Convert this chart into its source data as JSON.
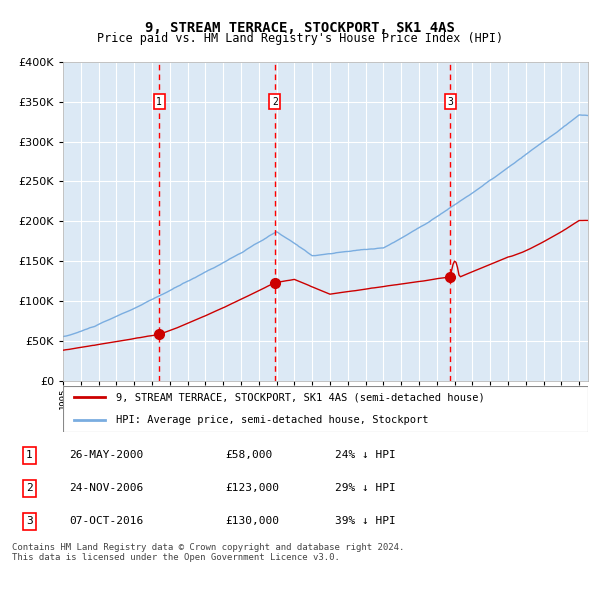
{
  "title": "9, STREAM TERRACE, STOCKPORT, SK1 4AS",
  "subtitle": "Price paid vs. HM Land Registry's House Price Index (HPI)",
  "legend_line1": "9, STREAM TERRACE, STOCKPORT, SK1 4AS (semi-detached house)",
  "legend_line2": "HPI: Average price, semi-detached house, Stockport",
  "footer": "Contains HM Land Registry data © Crown copyright and database right 2024.\nThis data is licensed under the Open Government Licence v3.0.",
  "sale_markers": [
    {
      "label": "1",
      "date": "26-MAY-2000",
      "price": 58000,
      "note": "24% ↓ HPI"
    },
    {
      "label": "2",
      "date": "24-NOV-2006",
      "price": 123000,
      "note": "29% ↓ HPI"
    },
    {
      "label": "3",
      "date": "07-OCT-2016",
      "price": 130000,
      "note": "39% ↓ HPI"
    }
  ],
  "sale_years": [
    2000.41,
    2006.9,
    2016.77
  ],
  "sale_prices": [
    58000,
    123000,
    130000
  ],
  "plot_bg": "#dce9f5",
  "grid_color": "#ffffff",
  "red_line_color": "#cc0000",
  "blue_line_color": "#7aade0",
  "ylim": [
    0,
    400000
  ],
  "yticks": [
    0,
    50000,
    100000,
    150000,
    200000,
    250000,
    300000,
    350000,
    400000
  ],
  "xlim_start": 1995,
  "xlim_end": 2024.5
}
